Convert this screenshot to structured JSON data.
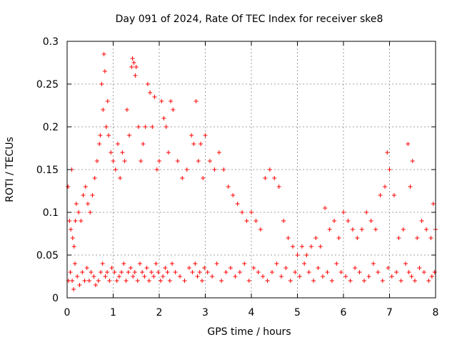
{
  "chart_data": {
    "type": "scatter",
    "title": "Day 091 of 2024, Rate Of TEC Index for receiver ske8",
    "xlabel": "GPS time / hours",
    "ylabel": "ROTI / TECUs",
    "xlim": [
      0,
      8
    ],
    "ylim": [
      0,
      0.3
    ],
    "xticks": [
      0,
      1,
      2,
      3,
      4,
      5,
      6,
      7,
      8
    ],
    "yticks": [
      0,
      0.05,
      0.1,
      0.15,
      0.2,
      0.25,
      0.3
    ],
    "xtick_labels": [
      "0",
      "1",
      "2",
      "3",
      "4",
      "5",
      "6",
      "7",
      "8"
    ],
    "ytick_labels": [
      "0",
      "0.05",
      "0.1",
      "0.15",
      "0.2",
      "0.25",
      "0.3"
    ],
    "grid": true,
    "marker": "+",
    "color": "#ff0000",
    "series": [
      {
        "name": "ROTI",
        "x": [
          0.02,
          0.05,
          0.08,
          0.1,
          0.12,
          0.15,
          0.18,
          0.2,
          0.25,
          0.3,
          0.35,
          0.4,
          0.45,
          0.5,
          0.55,
          0.6,
          0.65,
          0.7,
          0.72,
          0.75,
          0.78,
          0.8,
          0.82,
          0.85,
          0.88,
          0.9,
          0.95,
          1.0,
          1.05,
          1.1,
          1.15,
          1.2,
          1.25,
          1.3,
          1.35,
          1.4,
          1.42,
          1.45,
          1.48,
          1.5,
          1.55,
          1.6,
          1.65,
          1.7,
          1.75,
          1.8,
          1.85,
          1.9,
          1.95,
          2.0,
          2.05,
          2.1,
          2.15,
          2.2,
          2.25,
          2.3,
          2.4,
          2.5,
          2.6,
          2.7,
          2.75,
          2.8,
          2.85,
          2.9,
          2.95,
          3.0,
          3.1,
          3.2,
          3.3,
          3.4,
          3.5,
          3.6,
          3.7,
          3.8,
          3.9,
          4.0,
          4.1,
          4.2,
          4.3,
          4.4,
          4.5,
          4.6,
          4.7,
          4.8,
          4.9,
          5.0,
          5.1,
          5.2,
          5.3,
          5.4,
          5.5,
          5.6,
          5.7,
          5.8,
          5.9,
          6.0,
          6.1,
          6.2,
          6.3,
          6.4,
          6.5,
          6.6,
          6.7,
          6.8,
          6.9,
          6.95,
          7.0,
          7.1,
          7.2,
          7.3,
          7.4,
          7.45,
          7.5,
          7.6,
          7.7,
          7.8,
          7.9,
          7.95,
          8.0,
          0.03,
          0.07,
          0.11,
          0.14,
          0.17,
          0.22,
          0.27,
          0.33,
          0.38,
          0.43,
          0.48,
          0.52,
          0.58,
          0.62,
          0.68,
          0.73,
          0.77,
          0.83,
          0.87,
          0.92,
          0.97,
          1.03,
          1.08,
          1.13,
          1.18,
          1.23,
          1.28,
          1.33,
          1.38,
          1.43,
          1.47,
          1.53,
          1.58,
          1.63,
          1.68,
          1.73,
          1.78,
          1.83,
          1.88,
          1.93,
          1.98,
          2.03,
          2.08,
          2.13,
          2.18,
          2.23,
          2.28,
          2.35,
          2.45,
          2.55,
          2.65,
          2.72,
          2.78,
          2.83,
          2.88,
          2.93,
          2.98,
          3.05,
          3.15,
          3.25,
          3.35,
          3.45,
          3.55,
          3.65,
          3.75,
          3.85,
          3.95,
          4.05,
          4.15,
          4.25,
          4.35,
          4.45,
          4.55,
          4.65,
          4.75,
          4.85,
          4.95,
          5.05,
          5.15,
          5.25,
          5.35,
          5.45,
          5.55,
          5.65,
          5.75,
          5.85,
          5.95,
          6.05,
          6.15,
          6.25,
          6.35,
          6.45,
          6.55,
          6.65,
          6.75,
          6.85,
          6.97,
          7.05,
          7.15,
          7.25,
          7.35,
          7.42,
          7.48,
          7.55,
          7.65,
          7.75,
          7.85,
          7.92,
          7.98
        ],
        "y": [
          0.13,
          0.09,
          0.08,
          0.15,
          0.07,
          0.06,
          0.09,
          0.11,
          0.1,
          0.09,
          0.12,
          0.13,
          0.11,
          0.1,
          0.12,
          0.14,
          0.16,
          0.18,
          0.19,
          0.25,
          0.22,
          0.285,
          0.265,
          0.2,
          0.23,
          0.19,
          0.17,
          0.16,
          0.15,
          0.18,
          0.14,
          0.17,
          0.16,
          0.22,
          0.19,
          0.27,
          0.28,
          0.275,
          0.26,
          0.27,
          0.2,
          0.16,
          0.18,
          0.2,
          0.25,
          0.24,
          0.2,
          0.235,
          0.15,
          0.16,
          0.23,
          0.21,
          0.2,
          0.17,
          0.23,
          0.22,
          0.16,
          0.14,
          0.15,
          0.19,
          0.18,
          0.23,
          0.16,
          0.18,
          0.14,
          0.19,
          0.16,
          0.15,
          0.17,
          0.15,
          0.13,
          0.12,
          0.11,
          0.1,
          0.09,
          0.1,
          0.09,
          0.08,
          0.14,
          0.15,
          0.14,
          0.13,
          0.09,
          0.07,
          0.06,
          0.05,
          0.06,
          0.05,
          0.06,
          0.07,
          0.06,
          0.105,
          0.08,
          0.09,
          0.07,
          0.1,
          0.09,
          0.08,
          0.07,
          0.08,
          0.1,
          0.09,
          0.08,
          0.12,
          0.13,
          0.17,
          0.15,
          0.12,
          0.07,
          0.08,
          0.18,
          0.13,
          0.16,
          0.07,
          0.09,
          0.08,
          0.07,
          0.11,
          0.08,
          0.02,
          0.03,
          0.02,
          0.01,
          0.04,
          0.025,
          0.015,
          0.03,
          0.02,
          0.035,
          0.02,
          0.03,
          0.025,
          0.015,
          0.02,
          0.03,
          0.04,
          0.025,
          0.03,
          0.02,
          0.035,
          0.03,
          0.02,
          0.025,
          0.03,
          0.04,
          0.02,
          0.03,
          0.035,
          0.025,
          0.03,
          0.02,
          0.04,
          0.03,
          0.025,
          0.035,
          0.02,
          0.03,
          0.025,
          0.04,
          0.03,
          0.02,
          0.025,
          0.035,
          0.03,
          0.02,
          0.04,
          0.03,
          0.025,
          0.02,
          0.035,
          0.03,
          0.04,
          0.025,
          0.03,
          0.02,
          0.035,
          0.03,
          0.025,
          0.04,
          0.02,
          0.03,
          0.035,
          0.025,
          0.03,
          0.04,
          0.02,
          0.035,
          0.03,
          0.025,
          0.02,
          0.03,
          0.04,
          0.025,
          0.035,
          0.02,
          0.03,
          0.025,
          0.04,
          0.03,
          0.02,
          0.035,
          0.025,
          0.03,
          0.02,
          0.04,
          0.03,
          0.025,
          0.02,
          0.035,
          0.03,
          0.02,
          0.025,
          0.04,
          0.03,
          0.02,
          0.035,
          0.025,
          0.03,
          0.02,
          0.04,
          0.03,
          0.025,
          0.02,
          0.035,
          0.03,
          0.02,
          0.025,
          0.03
        ]
      }
    ]
  }
}
